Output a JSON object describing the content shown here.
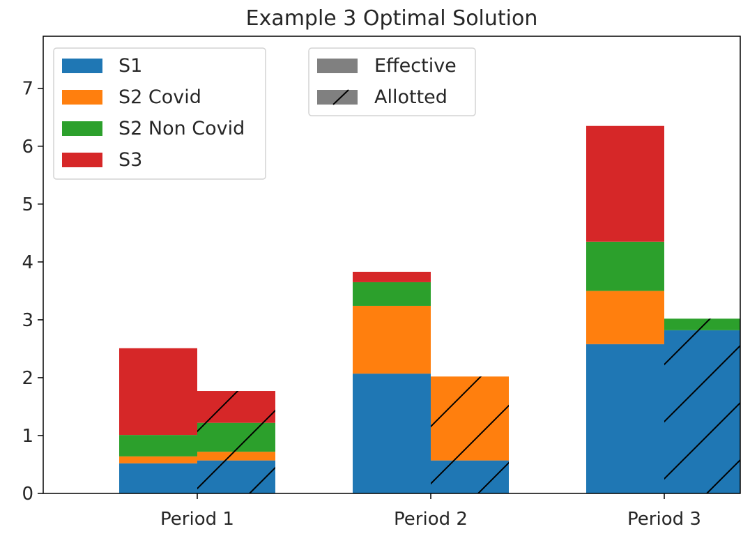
{
  "chart_data": {
    "type": "bar",
    "stacked": true,
    "title": "Example 3 Optimal Solution",
    "xlabel": "",
    "ylabel": "",
    "ylim": [
      0,
      7.9
    ],
    "yticks": [
      0,
      1,
      2,
      3,
      4,
      5,
      6,
      7
    ],
    "categories": [
      "Period 1",
      "Period 2",
      "Period 3"
    ],
    "groups": [
      {
        "name": "Effective",
        "hatch": "none",
        "series": [
          {
            "name": "S1",
            "values": [
              0.52,
              2.07,
              2.58
            ]
          },
          {
            "name": "S2 Covid",
            "values": [
              0.12,
              1.17,
              0.92
            ]
          },
          {
            "name": "S2 Non Covid",
            "values": [
              0.37,
              0.41,
              0.85
            ]
          },
          {
            "name": "S3",
            "values": [
              1.5,
              0.18,
              2.0
            ]
          }
        ]
      },
      {
        "name": "Allotted",
        "hatch": "diagonal",
        "series": [
          {
            "name": "S1",
            "values": [
              0.57,
              0.57,
              2.82
            ]
          },
          {
            "name": "S2 Covid",
            "values": [
              0.15,
              1.45,
              0.0
            ]
          },
          {
            "name": "S2 Non Covid",
            "values": [
              0.5,
              0.0,
              0.2
            ]
          },
          {
            "name": "S3",
            "values": [
              0.55,
              0.0,
              0.0
            ]
          }
        ]
      }
    ],
    "colors": {
      "S1": "#1f77b4",
      "S2 Covid": "#ff7f0e",
      "S2 Non Covid": "#2ca02c",
      "S3": "#d62728"
    },
    "legend_series": {
      "placement": "top-left",
      "entries": [
        "S1",
        "S2 Covid",
        "S2 Non Covid",
        "S3"
      ]
    },
    "legend_groups": {
      "placement": "top-center",
      "entries": [
        "Effective",
        "Allotted"
      ],
      "swatch_color": "#808080"
    }
  }
}
